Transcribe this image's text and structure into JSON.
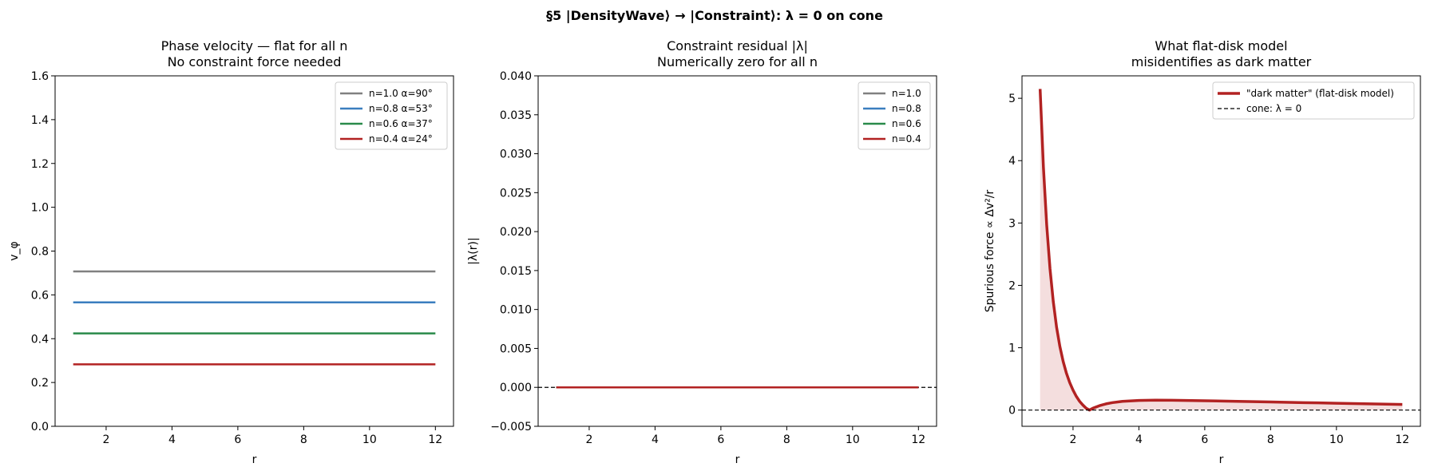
{
  "suptitle": "§5  |DensityWave⟩ → |Constraint⟩:  λ = 0 on cone",
  "chart_data": [
    {
      "type": "line",
      "title": [
        "Phase velocity — flat for all n",
        "No constraint force needed"
      ],
      "xlabel": "r",
      "ylabel": "v_φ",
      "xlim": [
        0.45,
        12.55
      ],
      "ylim": [
        0.0,
        1.6
      ],
      "xticks": [
        2,
        4,
        6,
        8,
        10,
        12
      ],
      "yticks": [
        0.0,
        0.2,
        0.4,
        0.6,
        0.8,
        1.0,
        1.2,
        1.4,
        1.6
      ],
      "ytick_decimals": 1,
      "legend_position": "upper right",
      "series": [
        {
          "name": "n=1.0  α=90°",
          "color": "#808080",
          "x": [
            1,
            12
          ],
          "y": [
            0.707,
            0.707
          ]
        },
        {
          "name": "n=0.8  α=53°",
          "color": "#3a7ebf",
          "x": [
            1,
            12
          ],
          "y": [
            0.566,
            0.566
          ]
        },
        {
          "name": "n=0.6  α=37°",
          "color": "#2a8a4a",
          "x": [
            1,
            12
          ],
          "y": [
            0.424,
            0.424
          ]
        },
        {
          "name": "n=0.4  α=24°",
          "color": "#b22222",
          "x": [
            1,
            12
          ],
          "y": [
            0.283,
            0.283
          ]
        }
      ]
    },
    {
      "type": "line",
      "title": [
        "Constraint residual |λ|",
        "Numerically zero for all n"
      ],
      "xlabel": "r",
      "ylabel": "|λ(r)|",
      "xlim": [
        0.45,
        12.55
      ],
      "ylim": [
        -0.005,
        0.04
      ],
      "xticks": [
        2,
        4,
        6,
        8,
        10,
        12
      ],
      "yticks": [
        -0.005,
        0.0,
        0.005,
        0.01,
        0.015,
        0.02,
        0.025,
        0.03,
        0.035,
        0.04
      ],
      "ytick_decimals": 3,
      "hline": {
        "y": 0,
        "style": "dashed",
        "color": "#000000"
      },
      "legend_position": "upper right",
      "series": [
        {
          "name": "n=1.0",
          "color": "#808080",
          "x": [
            1,
            12
          ],
          "y": [
            0,
            0
          ]
        },
        {
          "name": "n=0.8",
          "color": "#3a7ebf",
          "x": [
            1,
            12
          ],
          "y": [
            0,
            0
          ]
        },
        {
          "name": "n=0.6",
          "color": "#2a8a4a",
          "x": [
            1,
            12
          ],
          "y": [
            0,
            0
          ]
        },
        {
          "name": "n=0.4",
          "color": "#b22222",
          "x": [
            1,
            12
          ],
          "y": [
            0,
            0
          ]
        }
      ]
    },
    {
      "type": "area",
      "title": [
        "What flat-disk model",
        "misidentifies as dark matter"
      ],
      "xlabel": "r",
      "ylabel": "Spurious force  ∝  Δv²/r",
      "xlim": [
        0.45,
        12.55
      ],
      "ylim": [
        -0.26,
        5.36
      ],
      "xticks": [
        2,
        4,
        6,
        8,
        10,
        12
      ],
      "yticks": [
        0,
        1,
        2,
        3,
        4,
        5
      ],
      "ytick_decimals": 0,
      "legend_position": "upper right",
      "series": [
        {
          "name": "\"dark matter\" (flat-disk model)",
          "color": "#b22222",
          "fill": "#b22222",
          "fill_opacity": 0.15,
          "x": [
            1.0,
            1.1,
            1.2,
            1.3,
            1.4,
            1.5,
            1.6,
            1.7,
            1.8,
            1.9,
            2.0,
            2.1,
            2.2,
            2.3,
            2.4,
            2.5,
            2.6,
            2.8,
            3.0,
            3.2,
            3.5,
            4.0,
            4.5,
            5.0,
            6.0,
            7.0,
            8.0,
            9.0,
            10.0,
            11.0,
            12.0
          ],
          "y": [
            5.15,
            3.9,
            2.97,
            2.27,
            1.74,
            1.33,
            1.02,
            0.78,
            0.59,
            0.44,
            0.32,
            0.22,
            0.14,
            0.08,
            0.03,
            0.0,
            0.03,
            0.07,
            0.1,
            0.12,
            0.14,
            0.155,
            0.16,
            0.158,
            0.15,
            0.14,
            0.13,
            0.12,
            0.11,
            0.1,
            0.09
          ]
        },
        {
          "name": "cone: λ = 0",
          "color": "#000000",
          "style": "dashed",
          "x": [
            0.45,
            12.55
          ],
          "y": [
            0,
            0
          ]
        }
      ]
    }
  ]
}
